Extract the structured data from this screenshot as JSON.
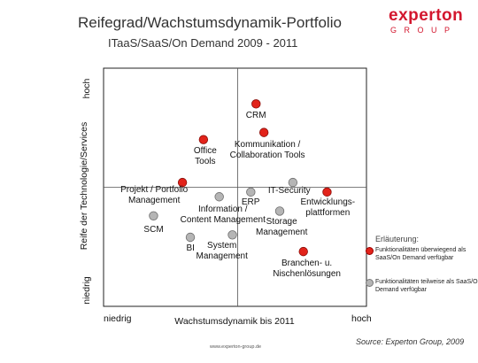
{
  "header": {
    "title": "Reifegrad/Wachstumsdynamik-Portfolio",
    "subtitle": "ITaaS/SaaS/On Demand 2009 - 2011"
  },
  "logo": {
    "main": "experton",
    "sub": "GROUP"
  },
  "colors": {
    "red": "#e2231a",
    "gray": "#b5b5b5",
    "brand": "#d3172e"
  },
  "chart_data": {
    "type": "scatter",
    "xlabel": "Wachstumsdynamik bis 2011",
    "ylabel": "Reife der Technologie/Services",
    "x_ticks": [
      "niedrig",
      "hoch"
    ],
    "y_ticks": [
      "niedrig",
      "hoch"
    ],
    "xlim": [
      0,
      100
    ],
    "ylim": [
      0,
      100
    ],
    "quadrant_lines": {
      "x": 51,
      "y": 50
    },
    "points": [
      {
        "label": "CRM",
        "x": 58,
        "y": 85,
        "category": "red"
      },
      {
        "label": "Kommunikation / Collaboration Tools",
        "x": 61,
        "y": 73,
        "category": "red"
      },
      {
        "label": "Office Tools",
        "x": 38,
        "y": 70,
        "category": "red"
      },
      {
        "label": "Projekt / Portfolio Management",
        "x": 30,
        "y": 52,
        "category": "red"
      },
      {
        "label": "Entwicklungs-plattformen",
        "x": 85,
        "y": 48,
        "category": "red"
      },
      {
        "label": "Branchen- u. Nischenlösungen",
        "x": 76,
        "y": 23,
        "category": "red"
      },
      {
        "label": "IT-Security",
        "x": 72,
        "y": 52,
        "category": "gray"
      },
      {
        "label": "ERP",
        "x": 56,
        "y": 48,
        "category": "gray"
      },
      {
        "label": "Information / Content Management",
        "x": 44,
        "y": 46,
        "category": "gray"
      },
      {
        "label": "Storage Management",
        "x": 67,
        "y": 40,
        "category": "gray"
      },
      {
        "label": "SCM",
        "x": 19,
        "y": 38,
        "category": "gray"
      },
      {
        "label": "BI",
        "x": 33,
        "y": 29,
        "category": "gray"
      },
      {
        "label": "System Management",
        "x": 49,
        "y": 30,
        "category": "gray"
      }
    ]
  },
  "legend": {
    "title": "Erläuterung:",
    "items": [
      {
        "color": "#e2231a",
        "text": "Funktionalitäten überwiegend als SaaS/On Demand verfügbar"
      },
      {
        "color": "#b5b5b5",
        "text": "Funktionalitäten teilweise als SaaS/On Demand verfügbar"
      }
    ]
  },
  "footer": {
    "source": "Source: Experton Group, 2009",
    "url": "www.experton-group.de"
  }
}
